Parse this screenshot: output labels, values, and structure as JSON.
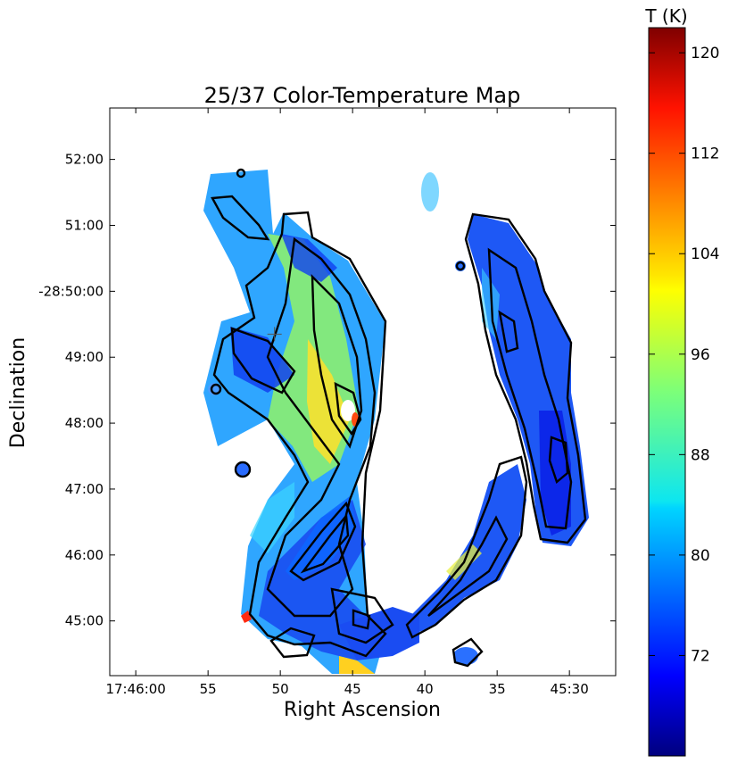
{
  "chart_data": {
    "type": "heatmap",
    "title": "25/37 Color-Temperature Map",
    "xlabel": "Right Ascension",
    "ylabel": "Declination",
    "x_ticks": [
      {
        "value": 60,
        "label": "17:46:00"
      },
      {
        "value": 55,
        "label": "55"
      },
      {
        "value": 50,
        "label": "50"
      },
      {
        "value": 45,
        "label": "45"
      },
      {
        "value": 40,
        "label": "40"
      },
      {
        "value": 35,
        "label": "35"
      },
      {
        "value": 30,
        "label": "45:30"
      }
    ],
    "xlim": [
      61.8,
      26.8
    ],
    "y_ticks": [
      {
        "value": 45,
        "label": "45:00"
      },
      {
        "value": 46,
        "label": "46:00"
      },
      {
        "value": 47,
        "label": "47:00"
      },
      {
        "value": 48,
        "label": "48:00"
      },
      {
        "value": 49,
        "label": "49:00"
      },
      {
        "value": 50,
        "label": "-28:50:00"
      },
      {
        "value": 51,
        "label": "51:00"
      },
      {
        "value": 52,
        "label": "52:00"
      }
    ],
    "ylim": [
      52.78,
      44.17
    ],
    "colorbar": {
      "label": "T (K)",
      "range": [
        64,
        122
      ],
      "ticks": [
        72,
        80,
        88,
        96,
        104,
        112,
        120
      ],
      "colormap": "jet"
    },
    "marker": {
      "symbol": "+",
      "x": 50.4,
      "y": 49.35
    },
    "grid": false
  }
}
